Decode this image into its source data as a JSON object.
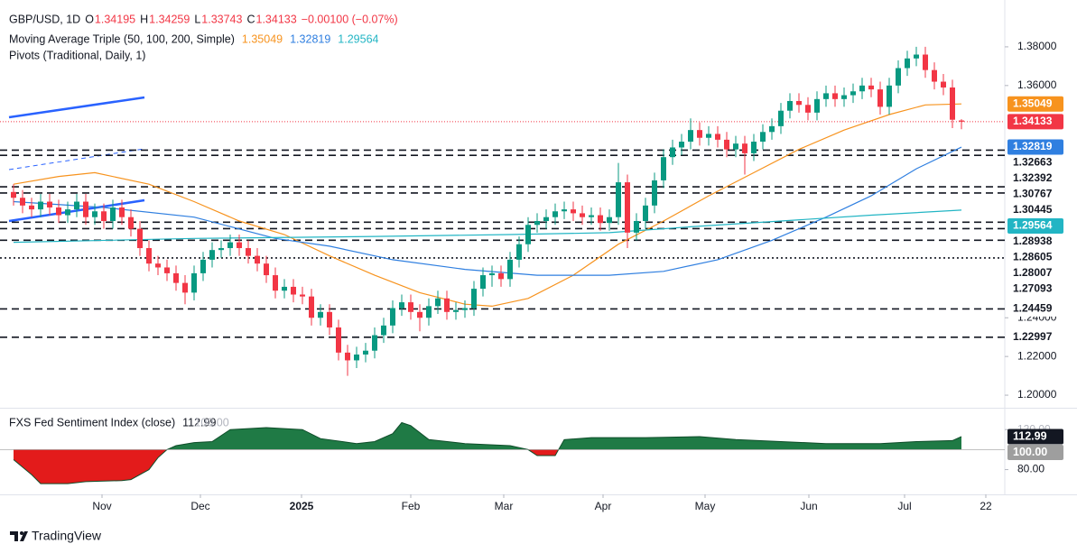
{
  "header": {
    "symbol": "GBP/USD, 1D",
    "ohlc": [
      {
        "label": "O",
        "value": "1.34195"
      },
      {
        "label": "H",
        "value": "1.34259"
      },
      {
        "label": "L",
        "value": "1.33743"
      },
      {
        "label": "C",
        "value": "1.34133"
      }
    ],
    "change": "−0.00100 (−0.07%)",
    "value_color": "#f23645"
  },
  "chart_data": [
    {
      "type": "candlestick",
      "ma_title": "Moving Average Triple (50, 100, 200, Simple)",
      "pivots_title": "Pivots (Traditional, Daily, 1)",
      "up_color": "#089981",
      "down_color": "#f23645",
      "open": [
        1.305,
        1.302,
        1.298,
        1.296,
        1.3,
        1.297,
        1.293,
        1.296,
        1.3,
        1.292,
        1.295,
        1.29,
        1.297,
        1.292,
        1.286,
        1.276,
        1.268,
        1.266,
        1.263,
        1.258,
        1.253,
        1.263,
        1.27,
        1.275,
        1.276,
        1.279,
        1.276,
        1.272,
        1.268,
        1.262,
        1.254,
        1.256,
        1.252,
        1.251,
        1.24,
        1.243,
        1.235,
        1.222,
        1.218,
        1.221,
        1.223,
        1.231,
        1.236,
        1.245,
        1.248,
        1.243,
        1.24,
        1.246,
        1.25,
        1.243,
        1.244,
        1.245,
        1.255,
        1.262,
        1.263,
        1.26,
        1.27,
        1.278,
        1.288,
        1.29,
        1.292,
        1.295,
        1.296,
        1.294,
        1.292,
        1.293,
        1.289,
        1.292,
        1.31,
        1.284,
        1.29,
        1.298,
        1.311,
        1.323,
        1.328,
        1.331,
        1.337,
        1.333,
        1.335,
        1.332,
        1.327,
        1.33,
        1.325,
        1.331,
        1.336,
        1.339,
        1.347,
        1.352,
        1.35,
        1.346,
        1.353,
        1.356,
        1.353,
        1.355,
        1.357,
        1.36,
        1.358,
        1.349,
        1.36,
        1.369,
        1.374,
        1.376,
        1.368,
        1.362,
        1.359,
        1.34195
      ],
      "high": [
        1.309,
        1.306,
        1.302,
        1.304,
        1.304,
        1.301,
        1.3,
        1.304,
        1.304,
        1.299,
        1.299,
        1.301,
        1.301,
        1.296,
        1.29,
        1.28,
        1.272,
        1.27,
        1.267,
        1.262,
        1.267,
        1.274,
        1.279,
        1.28,
        1.283,
        1.283,
        1.28,
        1.276,
        1.272,
        1.266,
        1.26,
        1.26,
        1.256,
        1.255,
        1.247,
        1.247,
        1.239,
        1.226,
        1.225,
        1.227,
        1.235,
        1.24,
        1.249,
        1.252,
        1.252,
        1.247,
        1.25,
        1.254,
        1.254,
        1.248,
        1.249,
        1.259,
        1.266,
        1.267,
        1.267,
        1.274,
        1.282,
        1.292,
        1.294,
        1.296,
        1.299,
        1.3,
        1.3,
        1.298,
        1.297,
        1.297,
        1.296,
        1.32,
        1.314,
        1.294,
        1.302,
        1.315,
        1.327,
        1.332,
        1.335,
        1.343,
        1.341,
        1.339,
        1.339,
        1.336,
        1.334,
        1.334,
        1.335,
        1.34,
        1.343,
        1.351,
        1.356,
        1.356,
        1.354,
        1.357,
        1.36,
        1.36,
        1.359,
        1.361,
        1.364,
        1.364,
        1.362,
        1.364,
        1.373,
        1.378,
        1.38,
        1.38,
        1.372,
        1.366,
        1.363,
        1.34259
      ],
      "low": [
        1.298,
        1.294,
        1.292,
        1.292,
        1.293,
        1.289,
        1.289,
        1.292,
        1.288,
        1.288,
        1.286,
        1.286,
        1.288,
        1.282,
        1.272,
        1.264,
        1.262,
        1.259,
        1.254,
        1.247,
        1.249,
        1.259,
        1.266,
        1.271,
        1.272,
        1.272,
        1.268,
        1.264,
        1.258,
        1.25,
        1.25,
        1.248,
        1.247,
        1.236,
        1.236,
        1.231,
        1.218,
        1.21,
        1.214,
        1.217,
        1.219,
        1.227,
        1.232,
        1.241,
        1.239,
        1.233,
        1.236,
        1.242,
        1.239,
        1.239,
        1.24,
        1.241,
        1.251,
        1.256,
        1.256,
        1.256,
        1.266,
        1.274,
        1.284,
        1.286,
        1.288,
        1.291,
        1.29,
        1.288,
        1.288,
        1.285,
        1.285,
        1.288,
        1.276,
        1.28,
        1.286,
        1.294,
        1.307,
        1.319,
        1.324,
        1.327,
        1.329,
        1.329,
        1.328,
        1.323,
        1.323,
        1.314,
        1.321,
        1.327,
        1.332,
        1.335,
        1.343,
        1.346,
        1.342,
        1.342,
        1.349,
        1.349,
        1.349,
        1.351,
        1.353,
        1.354,
        1.345,
        1.345,
        1.356,
        1.365,
        1.37,
        1.364,
        1.358,
        1.355,
        1.338,
        1.33743
      ],
      "close": [
        1.302,
        1.298,
        1.296,
        1.3,
        1.297,
        1.293,
        1.296,
        1.3,
        1.292,
        1.295,
        1.29,
        1.297,
        1.292,
        1.286,
        1.276,
        1.268,
        1.266,
        1.263,
        1.258,
        1.253,
        1.263,
        1.27,
        1.275,
        1.276,
        1.279,
        1.276,
        1.272,
        1.268,
        1.262,
        1.254,
        1.256,
        1.252,
        1.251,
        1.24,
        1.243,
        1.235,
        1.222,
        1.218,
        1.221,
        1.223,
        1.231,
        1.236,
        1.245,
        1.248,
        1.243,
        1.24,
        1.246,
        1.25,
        1.243,
        1.244,
        1.245,
        1.255,
        1.262,
        1.263,
        1.26,
        1.27,
        1.278,
        1.288,
        1.29,
        1.292,
        1.295,
        1.296,
        1.294,
        1.292,
        1.293,
        1.289,
        1.292,
        1.31,
        1.284,
        1.29,
        1.298,
        1.311,
        1.323,
        1.328,
        1.331,
        1.337,
        1.333,
        1.335,
        1.332,
        1.327,
        1.33,
        1.325,
        1.331,
        1.336,
        1.339,
        1.347,
        1.352,
        1.35,
        1.346,
        1.353,
        1.356,
        1.353,
        1.355,
        1.357,
        1.36,
        1.358,
        1.349,
        1.36,
        1.369,
        1.374,
        1.376,
        1.368,
        1.362,
        1.359,
        1.34233,
        1.34133
      ],
      "xlim": [
        -1.5,
        109.8
      ],
      "ylim": [
        1.1935,
        1.4042
      ],
      "yticks": [
        {
          "value": 1.38,
          "label": "1.38000"
        },
        {
          "value": 1.36,
          "label": "1.36000"
        },
        {
          "value": 1.24,
          "label": "1.24000"
        },
        {
          "value": 1.22,
          "label": "1.22000"
        },
        {
          "value": 1.2,
          "label": "1.20000"
        }
      ],
      "xticks": [
        {
          "value": 9.8,
          "label": "Nov"
        },
        {
          "value": 20.7,
          "label": "Dec"
        },
        {
          "value": 31.9,
          "label": "2025"
        },
        {
          "value": 44,
          "label": "Feb"
        },
        {
          "value": 54.3,
          "label": "Mar"
        },
        {
          "value": 65.3,
          "label": "Apr"
        },
        {
          "value": 76.6,
          "label": "May"
        },
        {
          "value": 88.1,
          "label": "Jun"
        },
        {
          "value": 98.7,
          "label": "Jul"
        },
        {
          "value": 107.7,
          "label": "22"
        }
      ],
      "last_price": 1.34133,
      "last_color": "#f23645",
      "moving_averages": [
        {
          "color": "#f7931e",
          "last": 1.35049,
          "x": [
            0,
            5,
            9,
            15,
            20,
            25,
            30,
            35,
            40,
            45,
            50,
            53,
            57,
            62,
            67,
            72,
            77,
            82,
            87,
            92,
            97,
            101,
            105
          ],
          "values": [
            1.309,
            1.313,
            1.315,
            1.309,
            1.3,
            1.29,
            1.283,
            1.272,
            1.262,
            1.253,
            1.247,
            1.246,
            1.25,
            1.262,
            1.278,
            1.29,
            1.303,
            1.315,
            1.327,
            1.337,
            1.345,
            1.35,
            1.35049
          ]
        },
        {
          "color": "#2f7fe0",
          "last": 1.32819,
          "x": [
            0,
            10,
            20,
            29,
            35,
            42,
            50,
            58,
            66,
            72,
            78,
            84,
            90,
            95,
            100,
            105
          ],
          "values": [
            1.3,
            1.297,
            1.292,
            1.281,
            1.277,
            1.27,
            1.265,
            1.262,
            1.262,
            1.264,
            1.27,
            1.28,
            1.292,
            1.303,
            1.317,
            1.32819
          ]
        },
        {
          "color": "#22b5c4",
          "last": 1.29564,
          "x": [
            0,
            20,
            40,
            55,
            66,
            75,
            85,
            95,
            105
          ],
          "values": [
            1.279,
            1.281,
            1.282,
            1.283,
            1.284,
            1.287,
            1.29,
            1.293,
            1.29564
          ]
        }
      ],
      "pivots": [
        {
          "value": 1.32663,
          "style": "dashed"
        },
        {
          "value": 1.32392,
          "style": "dashed"
        },
        {
          "value": 1.30767,
          "style": "dashed"
        },
        {
          "value": 1.30445,
          "style": "dashed"
        },
        {
          "value": 1.28938,
          "style": "dashed"
        },
        {
          "value": 1.28605,
          "style": "dashed"
        },
        {
          "value": 1.28007,
          "style": "dashed"
        },
        {
          "value": 1.27093,
          "style": "dotted"
        },
        {
          "value": 1.24459,
          "style": "dashed"
        },
        {
          "value": 1.22997,
          "style": "dashed"
        }
      ]
    },
    {
      "type": "area",
      "title": "FXS Fed Sentiment Index (close)",
      "last": 112.99,
      "baseline": {
        "value": 100,
        "label": "100.00"
      },
      "up_color": "#1f7a45",
      "down_color": "#e31b1b",
      "x": [
        0,
        2,
        3,
        6,
        8,
        12,
        13,
        15,
        16,
        17,
        18,
        20,
        22,
        24,
        28,
        32,
        34,
        38,
        40,
        42,
        43,
        44,
        46,
        50,
        55,
        57,
        58,
        60,
        61,
        64,
        70,
        76,
        80,
        85,
        90,
        96,
        100,
        104,
        105
      ],
      "values": [
        90,
        75,
        66,
        66,
        68,
        69,
        70,
        80,
        92,
        100,
        104,
        107,
        108,
        120,
        122,
        120,
        111,
        106,
        108,
        116,
        127,
        124,
        110,
        106,
        104,
        100,
        94,
        94,
        110,
        112,
        112,
        113,
        110,
        108,
        106,
        106,
        108,
        109,
        112.99
      ],
      "ylim": [
        55.24,
        140.95
      ],
      "yticks": [
        {
          "value": 120,
          "label": "120.00"
        },
        {
          "value": 80,
          "label": "80.00"
        }
      ]
    }
  ],
  "footer": {
    "brand": "TradingView"
  }
}
